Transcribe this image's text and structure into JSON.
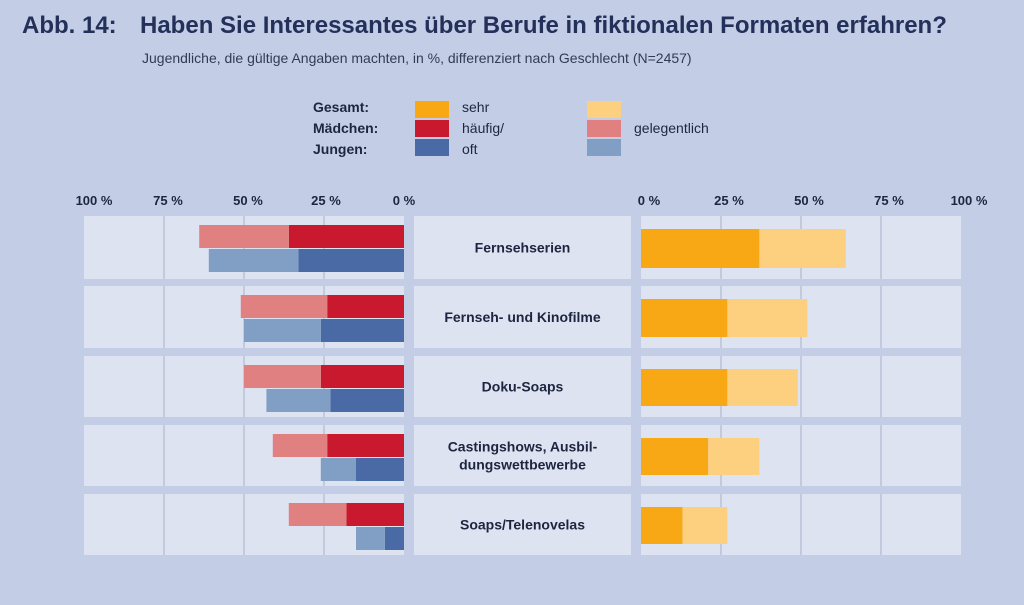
{
  "title": {
    "number": "Abb. 14:",
    "text": "Haben Sie Interessantes über Berufe in fiktionalen Formaten erfahren?"
  },
  "subtitle": "Jugendliche, die gültige Angaben machten, in %, differenziert nach Geschlecht (N=2457)",
  "legend": {
    "groups": [
      "Gesamt:",
      "Mädchen:",
      "Jungen:"
    ],
    "level_labels": {
      "sehr": "sehr",
      "haeufig": "häufig/",
      "oft": "oft",
      "gelegentlich": "gelegentlich"
    }
  },
  "colors": {
    "gesamt_strong": "#f7a814",
    "gesamt_light": "#fdd080",
    "maedchen_strong": "#c9192e",
    "maedchen_light": "#e08080",
    "jungen_strong": "#4a6aa5",
    "jungen_light": "#819fc4",
    "panel": "#dde3f0",
    "grid": "#a9b2cc",
    "text": "#1e2540"
  },
  "chart_data": {
    "type": "bar",
    "categories": [
      [
        "Fernsehserien"
      ],
      [
        "Fernseh- und Kinofilme"
      ],
      [
        "Doku-Soaps"
      ],
      [
        "Castingshows, Ausbil-",
        "dungswettbewerbe"
      ],
      [
        "Soaps/Telenovelas"
      ]
    ],
    "left_ticks": [
      "100 %",
      "75 %",
      "50 %",
      "25 %",
      "0 %"
    ],
    "right_ticks": [
      "0 %",
      "25 %",
      "50 %",
      "75 %",
      "100 %"
    ],
    "xlim": [
      0,
      100
    ],
    "series": [
      {
        "group": "Gesamt",
        "level": "sehr/häufig/oft",
        "values": [
          37,
          27,
          27,
          21,
          13
        ]
      },
      {
        "group": "Gesamt",
        "level": "gelegentlich",
        "values": [
          27,
          25,
          22,
          16,
          14
        ]
      },
      {
        "group": "Mädchen",
        "level": "sehr/häufig/oft",
        "values": [
          36,
          24,
          26,
          24,
          18
        ]
      },
      {
        "group": "Mädchen",
        "level": "gelegentlich",
        "values": [
          28,
          27,
          24,
          17,
          18
        ]
      },
      {
        "group": "Jungen",
        "level": "sehr/häufig/oft",
        "values": [
          33,
          26,
          23,
          15,
          6
        ]
      },
      {
        "group": "Jungen",
        "level": "gelegentlich",
        "values": [
          28,
          24,
          20,
          11,
          9
        ]
      }
    ]
  }
}
